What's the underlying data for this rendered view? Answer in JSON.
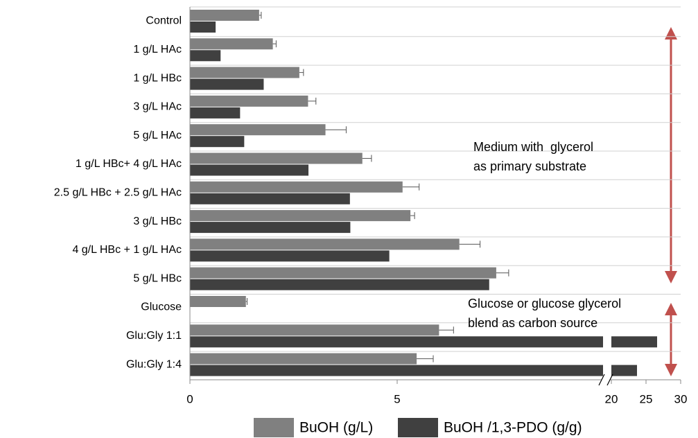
{
  "chart_data": {
    "type": "hbar",
    "categories": [
      "Control",
      "1 g/L HAc",
      "1 g/L HBc",
      "3 g/L HAc",
      "5 g/L HAc",
      "1 g/L HBc+ 4 g/L HAc",
      "2.5 g/L HBc + 2.5 g/L HAc",
      "3 g/L HBc",
      "4 g/L HBc + 1 g/L HAc",
      "5 g/L HBc",
      "Glucose",
      "Glu:Gly 1:1",
      "Glu:Gly 1:4"
    ],
    "series": [
      {
        "name": "BuOH (g/L)",
        "color": "#808080",
        "values": [
          1.67,
          2.0,
          2.64,
          2.85,
          3.27,
          4.16,
          5.13,
          5.32,
          6.5,
          7.39,
          1.35,
          6.01,
          5.47
        ],
        "errors": [
          0.05,
          0.08,
          0.1,
          0.19,
          0.5,
          0.22,
          0.4,
          0.1,
          0.5,
          0.3,
          0.03,
          0.35,
          0.4
        ]
      },
      {
        "name": "BuOH /1,3-PDO (g/g)",
        "color": "#404040",
        "values": [
          0.62,
          0.74,
          1.78,
          1.21,
          1.31,
          2.86,
          3.86,
          3.87,
          4.81,
          7.22,
          null,
          26.6,
          23.7
        ]
      }
    ],
    "xlim": [
      0,
      30
    ],
    "xbreak": [
      10,
      20
    ],
    "xticks": [
      0,
      5,
      20,
      25,
      30
    ],
    "annotations": [
      {
        "lines": [
          "Medium with  glycerol",
          "as primary substrate"
        ],
        "color": "#e03c3c"
      },
      {
        "lines": [
          "Glucose or glucose glycerol",
          "blend as carbon source"
        ],
        "color": "#e03c3c"
      }
    ],
    "legend": "bottom"
  }
}
